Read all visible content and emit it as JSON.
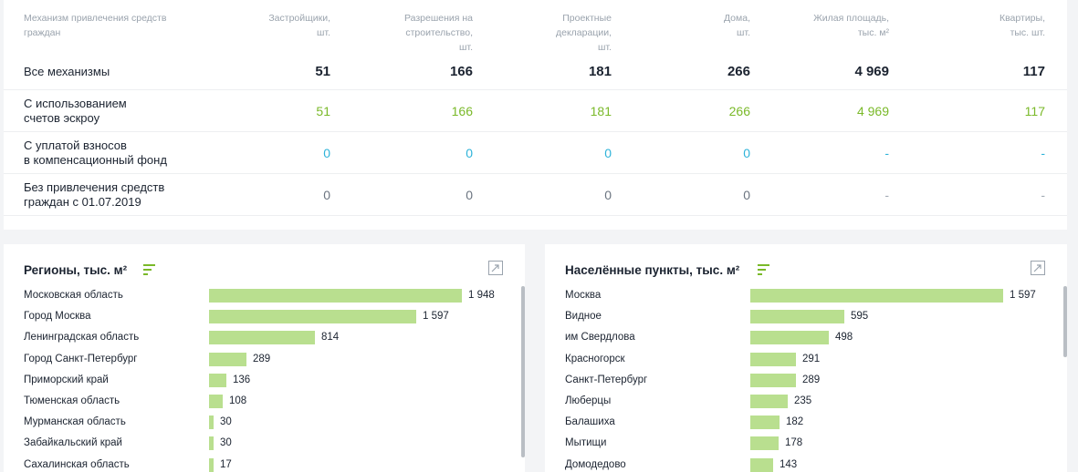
{
  "table": {
    "headers": [
      [
        "Механизм привлечения средств",
        "граждан"
      ],
      [
        "Застройщики,",
        "шт."
      ],
      [
        "Разрешения на",
        "строительство,",
        "шт."
      ],
      [
        "Проектные",
        "декларации,",
        "шт."
      ],
      [
        "Дома,",
        "шт."
      ],
      [
        "Жилая площадь,",
        "тыс. м²"
      ],
      [
        "Квартиры,",
        "тыс. шт."
      ]
    ],
    "rows": [
      {
        "label": [
          "Все механизмы"
        ],
        "values": [
          "51",
          "166",
          "181",
          "266",
          "4 969",
          "117"
        ],
        "style": "total"
      },
      {
        "label": [
          "С использованием",
          "счетов эскроу"
        ],
        "values": [
          "51",
          "166",
          "181",
          "266",
          "4 969",
          "117"
        ],
        "style": "green"
      },
      {
        "label": [
          "С уплатой взносов",
          "в компенсационный фонд"
        ],
        "values": [
          "0",
          "0",
          "0",
          "0",
          "-",
          "-"
        ],
        "style": "blue"
      },
      {
        "label": [
          "Без привлечения средств",
          "граждан с 01.07.2019"
        ],
        "values": [
          "0",
          "0",
          "0",
          "0",
          "-",
          "-"
        ],
        "style": "gray"
      }
    ]
  },
  "regions": {
    "title": "Регионы, тыс. м²",
    "items": [
      {
        "label": "Московская область",
        "value": 1948,
        "value_text": "1 948"
      },
      {
        "label": "Город Москва",
        "value": 1597,
        "value_text": "1 597"
      },
      {
        "label": "Ленинградская область",
        "value": 814,
        "value_text": "814"
      },
      {
        "label": "Город Санкт-Петербург",
        "value": 289,
        "value_text": "289"
      },
      {
        "label": "Приморский край",
        "value": 136,
        "value_text": "136"
      },
      {
        "label": "Тюменская область",
        "value": 108,
        "value_text": "108"
      },
      {
        "label": "Мурманская область",
        "value": 30,
        "value_text": "30"
      },
      {
        "label": "Забайкальский край",
        "value": 30,
        "value_text": "30"
      },
      {
        "label": "Сахалинская область",
        "value": 17,
        "value_text": "17"
      }
    ]
  },
  "cities": {
    "title": "Населённые пункты, тыс. м²",
    "items": [
      {
        "label": "Москва",
        "value": 1597,
        "value_text": "1 597"
      },
      {
        "label": "Видное",
        "value": 595,
        "value_text": "595"
      },
      {
        "label": "им Свердлова",
        "value": 498,
        "value_text": "498"
      },
      {
        "label": "Красногорск",
        "value": 291,
        "value_text": "291"
      },
      {
        "label": "Санкт-Петербург",
        "value": 289,
        "value_text": "289"
      },
      {
        "label": "Люберцы",
        "value": 235,
        "value_text": "235"
      },
      {
        "label": "Балашиха",
        "value": 182,
        "value_text": "182"
      },
      {
        "label": "Мытищи",
        "value": 178,
        "value_text": "178"
      },
      {
        "label": "Домодедово",
        "value": 143,
        "value_text": "143"
      }
    ]
  },
  "colors": {
    "bar": "#b9df8f",
    "accent_green": "#7ab929",
    "accent_blue": "#2fb3d9"
  },
  "icons": {
    "sort": "sort-lines-icon",
    "expand": "expand-icon"
  }
}
